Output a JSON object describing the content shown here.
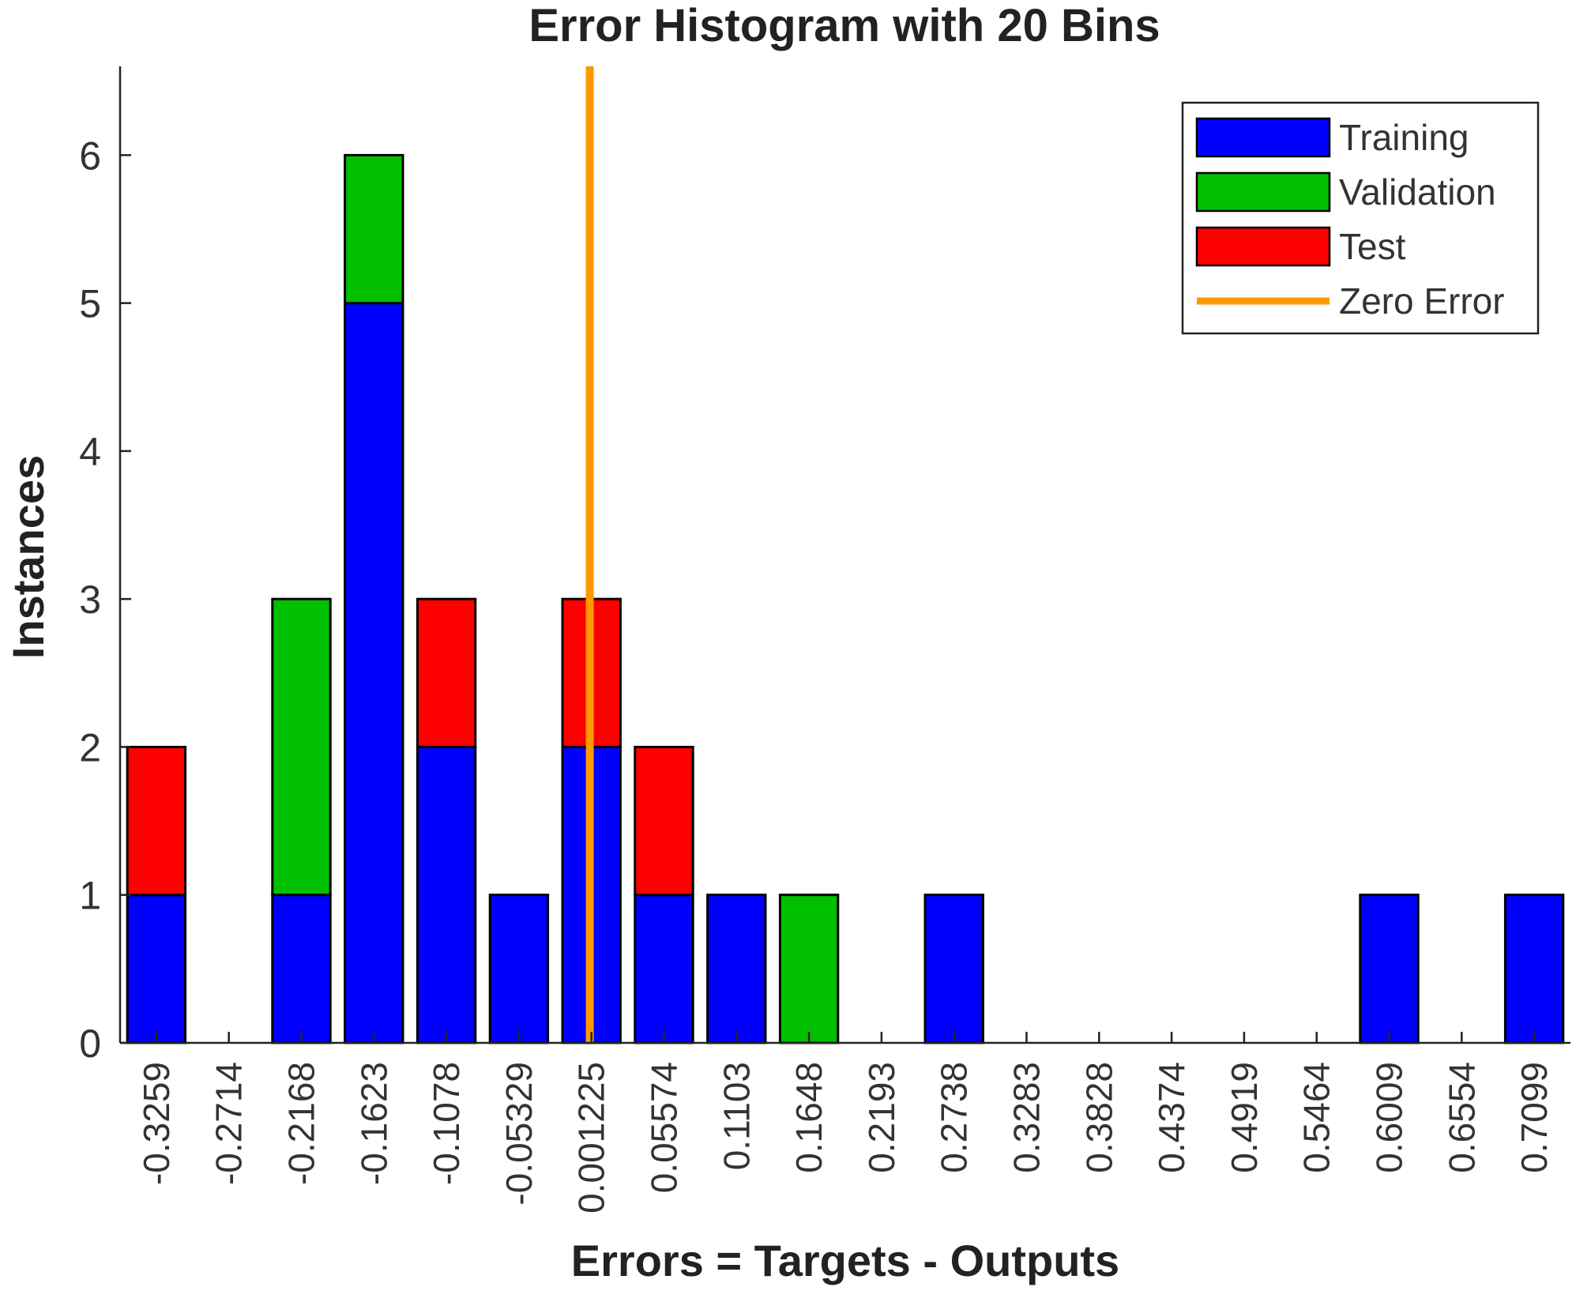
{
  "chart_data": {
    "type": "bar",
    "title": "Error Histogram with 20 Bins",
    "xlabel": "Errors = Targets - Outputs",
    "ylabel": "Instances",
    "ylim": [
      0,
      6.6
    ],
    "yticks": [
      0,
      1,
      2,
      3,
      4,
      5,
      6
    ],
    "stacked": true,
    "categories": [
      "-0.3259",
      "-0.2714",
      "-0.2168",
      "-0.1623",
      "-0.1078",
      "-0.05329",
      "0.001225",
      "0.05574",
      "0.1103",
      "0.1648",
      "0.2193",
      "0.2738",
      "0.3283",
      "0.3828",
      "0.4374",
      "0.4919",
      "0.5464",
      "0.6009",
      "0.6554",
      "0.7099"
    ],
    "series": [
      {
        "name": "Training",
        "color": "#0000ff",
        "values": [
          1,
          0,
          1,
          5,
          2,
          1,
          2,
          1,
          1,
          0,
          0,
          1,
          0,
          0,
          0,
          0,
          0,
          1,
          0,
          1
        ]
      },
      {
        "name": "Validation",
        "color": "#00c000",
        "values": [
          0,
          0,
          2,
          1,
          0,
          0,
          0,
          0,
          0,
          1,
          0,
          0,
          0,
          0,
          0,
          0,
          0,
          0,
          0,
          0
        ]
      },
      {
        "name": "Test",
        "color": "#ff0000",
        "values": [
          1,
          0,
          0,
          0,
          1,
          0,
          1,
          1,
          0,
          0,
          0,
          0,
          0,
          0,
          0,
          0,
          0,
          0,
          0,
          0
        ]
      }
    ],
    "reference_line": {
      "name": "Zero Error",
      "x": 0,
      "color": "#ff9900"
    },
    "legend": {
      "position": "top-right"
    },
    "grid": false
  }
}
